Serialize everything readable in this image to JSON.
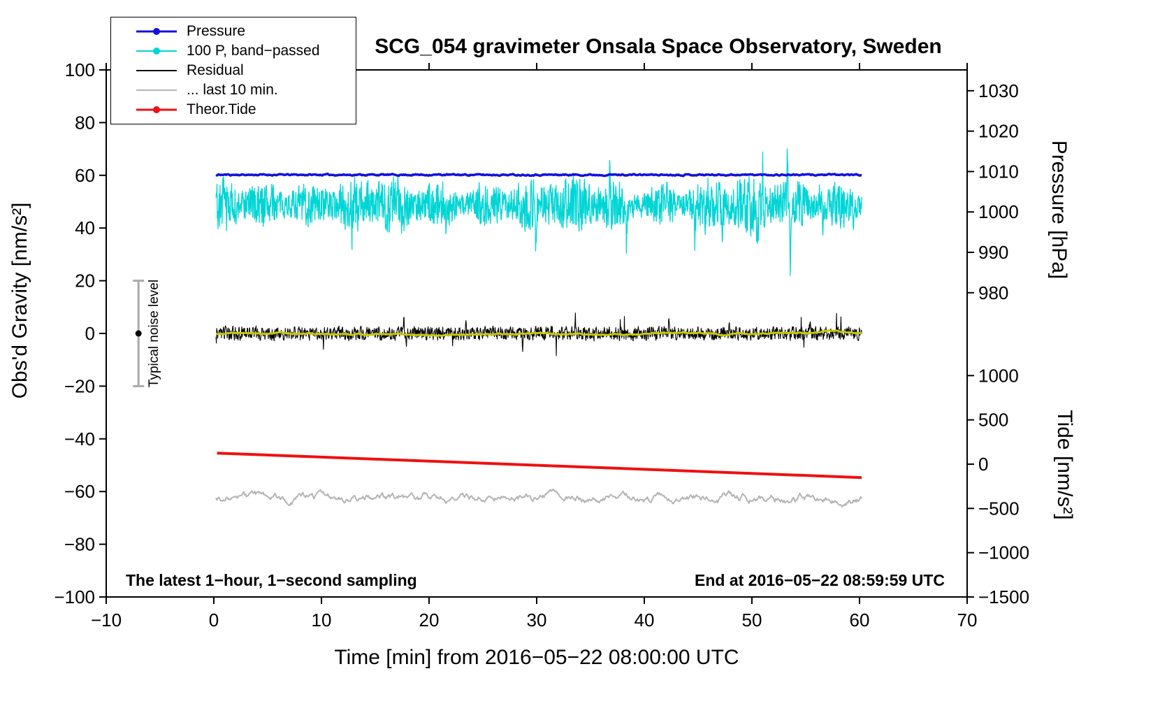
{
  "title": "SCG_054 gravimeter Onsala Space Observatory, Sweden",
  "annotations": {
    "noise_label": "Typical noise level",
    "bottom_left": "The latest 1−hour, 1−second sampling",
    "bottom_right": "End at 2016−05−22 08:59:59 UTC"
  },
  "legend": {
    "items": [
      {
        "label": "Pressure",
        "color": "#1212dd",
        "dot": true,
        "line_width": 3,
        "icon": "pressure-line-swatch"
      },
      {
        "label": "100 P, band−passed",
        "color": "#00d5d5",
        "dot": true,
        "line_width": 2,
        "icon": "bandpassed-line-swatch"
      },
      {
        "label": "Residual",
        "color": "#000000",
        "dot": false,
        "line_width": 2.5,
        "icon": "residual-line-swatch"
      },
      {
        "label": "... last 10 min.",
        "color": "#b4b4b4",
        "dot": false,
        "line_width": 2.5,
        "icon": "last10min-line-swatch"
      },
      {
        "label": "Theor.Tide",
        "color": "#ee1111",
        "dot": true,
        "line_width": 3,
        "icon": "theor-tide-line-swatch"
      }
    ]
  },
  "chart_data": {
    "type": "line",
    "title": "SCG_054 gravimeter Onsala Space Observatory, Sweden",
    "x_axis": {
      "label": "Time [min] from 2016−05−22 08:00:00 UTC",
      "range": [
        -10,
        70
      ],
      "ticks": [
        -10,
        0,
        10,
        20,
        30,
        40,
        50,
        60,
        70
      ]
    },
    "y_left": {
      "label": "Obs'd Gravity [nm/s²]",
      "range": [
        -100,
        100
      ],
      "ticks": [
        100,
        80,
        60,
        40,
        20,
        0,
        -20,
        -40,
        -60,
        -80,
        -100
      ]
    },
    "y_right_pressure": {
      "label": "Pressure [hPa]",
      "ticks": [
        1030,
        1020,
        1010,
        1000,
        990,
        980
      ],
      "gravity_at_1000": 46.1,
      "gravity_per_unit": 1.533
    },
    "y_right_tide": {
      "label": "Tide [nm/s²]",
      "ticks": [
        1000,
        500,
        0,
        -500,
        -1000,
        -1500
      ],
      "gravity_at_0": -49.6,
      "gravity_per_unit": 0.0336
    },
    "noise_bar": {
      "x": -7,
      "y": 0,
      "half_height": 20
    },
    "series": [
      {
        "name": "100 P, band−passed",
        "color": "#00d5d5",
        "axis": "left",
        "style": "noisy",
        "x_range": [
          0.2,
          60.2
        ],
        "baseline": 49,
        "noise_sd": 4.5,
        "smooth": 0.2,
        "amp_mod": [
          0.25,
          0.2
        ],
        "spike_prob": 0.003,
        "spike_amp": 9,
        "spike_neg": 0.8,
        "line_width": 1.3,
        "seed": 7,
        "points_n": 1900,
        "typical_range": [
          38,
          62
        ],
        "extremes": [
          22,
          68
        ],
        "events": [
          {
            "x": 2.1,
            "dy": -8
          },
          {
            "x": 13.4,
            "dy": -9
          },
          {
            "x": 21.6,
            "dy": -9
          },
          {
            "x": 29.9,
            "dy": -11
          },
          {
            "x": 36.8,
            "dy": 9
          },
          {
            "x": 38.35,
            "dy": -16
          },
          {
            "x": 44.7,
            "dy": -12
          },
          {
            "x": 47.2,
            "dy": -13
          },
          {
            "x": 50.5,
            "dy": -10
          },
          {
            "x": 53.3,
            "dy": 17,
            "w": 0.1
          },
          {
            "x": 53.6,
            "dy": -27,
            "w": 0.15
          },
          {
            "x": 56.6,
            "dy": -11
          },
          {
            "x": 59.5,
            "dy": -10
          }
        ]
      },
      {
        "name": "Pressure",
        "color": "#1212dd",
        "axis": "pressure",
        "style": "noisy",
        "x_range": [
          0.2,
          60.2
        ],
        "baseline": 60.2,
        "approx_hPa": 1009.2,
        "noise_sd": 0.15,
        "smooth": 0.6,
        "line_width": 3.5,
        "seed": 11,
        "points_n": 700
      },
      {
        "name": "Residual",
        "color": "#000000",
        "axis": "left",
        "style": "noisy",
        "x_range": [
          0.2,
          60.2
        ],
        "baseline": 0,
        "noise_sd": 1.4,
        "smooth": 0.25,
        "spike_prob": 0.004,
        "spike_amp": 4.5,
        "spike_neg": 0.55,
        "line_width": 1.1,
        "seed": 3,
        "points_n": 1900,
        "events": [
          {
            "x": 10.2,
            "dy": -5,
            "w": 0.08
          },
          {
            "x": 17.65,
            "dy": 8,
            "w": 0.08
          },
          {
            "x": 17.9,
            "dy": -6.5,
            "w": 0.08
          },
          {
            "x": 23.4,
            "dy": 5,
            "w": 0.08
          },
          {
            "x": 28.7,
            "dy": -7.5,
            "w": 0.08
          },
          {
            "x": 33.6,
            "dy": 5.5,
            "w": 0.08
          },
          {
            "x": 42.3,
            "dy": 6,
            "w": 0.08
          },
          {
            "x": 47.9,
            "dy": 5.5,
            "w": 0.08
          },
          {
            "x": 55.4,
            "dy": 5,
            "w": 0.08
          }
        ]
      },
      {
        "name": "Residual smoothed",
        "color": "#c8c800",
        "axis": "left",
        "style": "noisy",
        "x_range": [
          0.2,
          60.2
        ],
        "baseline": 0,
        "noise_sd": 0.45,
        "smooth": 0.97,
        "line_width": 3,
        "seed": 5,
        "points_n": 500
      },
      {
        "name": "... last 10 min.",
        "color": "#b4b4b4",
        "axis": "left",
        "style": "noisy",
        "x_range": [
          0.2,
          60.2
        ],
        "baseline": -62.5,
        "noise_sd": 1.1,
        "smooth": 0.88,
        "line_width": 2,
        "seed": 9,
        "points_n": 700
      },
      {
        "name": "Theor.Tide",
        "color": "#ee1111",
        "axis": "tide",
        "style": "line",
        "line_width": 4,
        "points_gravity": [
          [
            0.3,
            -45.4
          ],
          [
            60.2,
            -54.7
          ]
        ],
        "tide_values_nms2": [
          [
            0.3,
            125
          ],
          [
            60.2,
            -152
          ]
        ]
      }
    ]
  }
}
